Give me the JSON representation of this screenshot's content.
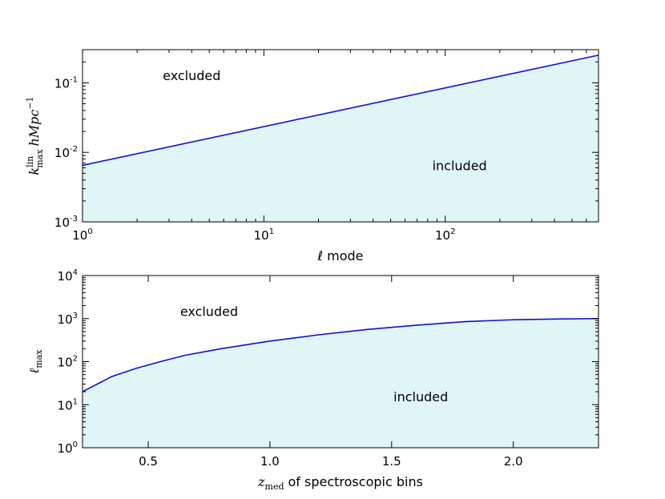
{
  "chart_data": [
    {
      "type": "area",
      "x_scale": "log",
      "y_scale": "log",
      "xlim": [
        1,
        700
      ],
      "ylim": [
        0.001,
        0.3
      ],
      "xlabel": "ℓ mode",
      "ylabel": "k_max^lin hMpc^-1",
      "ylabel_parts": {
        "k": "k",
        "sup": "lin",
        "sub": "max",
        "rest": "hMpc",
        "rest_sup": "−1"
      },
      "x_ticks": [
        {
          "base": "10",
          "exp": "0",
          "value": 1
        },
        {
          "base": "10",
          "exp": "1",
          "value": 10
        },
        {
          "base": "10",
          "exp": "2",
          "value": 100
        }
      ],
      "y_ticks": [
        {
          "base": "10",
          "exp": "-3",
          "value": 0.001
        },
        {
          "base": "10",
          "exp": "-2",
          "value": 0.01
        },
        {
          "base": "10",
          "exp": "-1",
          "value": 0.1
        }
      ],
      "annotations": [
        {
          "text": "excluded",
          "x": 4,
          "y": 0.11
        },
        {
          "text": "included",
          "x": 120,
          "y": 0.0055
        }
      ],
      "series": [
        {
          "x": [
            1,
            700
          ],
          "y": [
            0.0065,
            0.25
          ],
          "color": "#1010d8",
          "fill": "#e0f5f5"
        }
      ]
    },
    {
      "type": "area",
      "x_scale": "linear",
      "y_scale": "log",
      "xlim": [
        0.23,
        2.35
      ],
      "ylim": [
        1,
        10000
      ],
      "xlabel": "z_med of spectroscopic bins",
      "xlabel_parts": {
        "z": "z",
        "sub": "med",
        "rest": "of spectroscopic bins"
      },
      "ylabel": "ℓ_max",
      "ylabel_parts": {
        "l": "ℓ",
        "sub": "max"
      },
      "x_ticks": [
        {
          "label": "0.5",
          "value": 0.5
        },
        {
          "label": "1.0",
          "value": 1.0
        },
        {
          "label": "1.5",
          "value": 1.5
        },
        {
          "label": "2.0",
          "value": 2.0
        }
      ],
      "y_ticks": [
        {
          "base": "10",
          "exp": "0",
          "value": 1
        },
        {
          "base": "10",
          "exp": "1",
          "value": 10
        },
        {
          "base": "10",
          "exp": "2",
          "value": 100
        },
        {
          "base": "10",
          "exp": "3",
          "value": 1000
        },
        {
          "base": "10",
          "exp": "4",
          "value": 10000
        }
      ],
      "annotations": [
        {
          "text": "excluded",
          "x": 0.75,
          "y": 1150
        },
        {
          "text": "included",
          "x": 1.62,
          "y": 12
        }
      ],
      "series": [
        {
          "x": [
            0.23,
            0.35,
            0.45,
            0.55,
            0.65,
            0.8,
            1.0,
            1.2,
            1.4,
            1.6,
            1.8,
            2.0,
            2.2,
            2.35
          ],
          "y": [
            20,
            45,
            70,
            100,
            140,
            200,
            300,
            420,
            560,
            700,
            850,
            940,
            980,
            1000
          ],
          "color": "#1010d8",
          "fill": "#e0f5f5"
        }
      ]
    }
  ]
}
